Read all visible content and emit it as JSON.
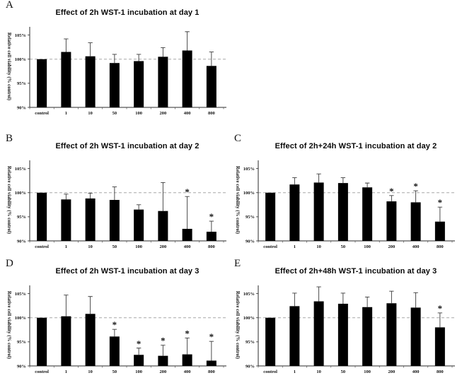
{
  "figure": {
    "background": "#ffffff",
    "bar_color": "#000000",
    "error_bar_color": "#3a3a3a",
    "axis_color": "#2b2b2b",
    "reference_line_color": "#9a9a9a",
    "significance_marker": "*",
    "y_axis_label": "Relative cell viability (% control)",
    "y_tick_labels": [
      "105%",
      "100%",
      "95%",
      "90%"
    ],
    "x_categories": [
      "control",
      "1",
      "10",
      "50",
      "100",
      "200",
      "400",
      "800"
    ]
  },
  "chart_data": [
    {
      "type": "bar",
      "panel": "A",
      "title": "Effect of 2h WST-1 incubation at day 1",
      "xlabel": "",
      "ylabel": "Relative cell viability (% control)",
      "categories": [
        "control",
        "1",
        "10",
        "50",
        "100",
        "200",
        "400",
        "800"
      ],
      "values": [
        100,
        101.5,
        100.6,
        99.2,
        99.6,
        100.5,
        101.8,
        98.6
      ],
      "errors_upper": [
        0,
        2.7,
        2.8,
        1.8,
        1.4,
        1.9,
        3.9,
        2.9
      ],
      "significant": [
        false,
        false,
        false,
        false,
        false,
        false,
        false,
        false
      ],
      "ylim": [
        90,
        107
      ],
      "yticks": [
        90,
        95,
        100,
        105
      ],
      "reference_line": 100,
      "grid": false,
      "legend": "none"
    },
    {
      "type": "bar",
      "panel": "B",
      "title": "Effect of 2h WST-1 incubation at day 2",
      "xlabel": "",
      "ylabel": "Relative cell viability (% control)",
      "categories": [
        "control",
        "1",
        "10",
        "50",
        "100",
        "200",
        "400",
        "800"
      ],
      "values": [
        100,
        98.6,
        98.8,
        98.5,
        96.5,
        96.2,
        92.5,
        91.9
      ],
      "errors_upper": [
        0,
        1.1,
        1.1,
        2.7,
        1.0,
        5.9,
        6.7,
        2.2
      ],
      "significant": [
        false,
        false,
        false,
        false,
        false,
        false,
        true,
        true
      ],
      "ylim": [
        90,
        107
      ],
      "yticks": [
        90,
        95,
        100,
        105
      ],
      "reference_line": 100,
      "grid": false,
      "legend": "none"
    },
    {
      "type": "bar",
      "panel": "C",
      "title": "Effect of 2h+24h WST-1 incubation at day 2",
      "xlabel": "",
      "ylabel": "Relative cell viability (% control)",
      "categories": [
        "control",
        "1",
        "10",
        "50",
        "100",
        "200",
        "400",
        "800"
      ],
      "values": [
        100,
        101.7,
        102.1,
        102.0,
        101.1,
        98.2,
        98.0,
        94.0
      ],
      "errors_upper": [
        0,
        1.4,
        1.8,
        1.1,
        0.9,
        1.2,
        2.4,
        3.0
      ],
      "significant": [
        false,
        false,
        false,
        false,
        false,
        true,
        true,
        true
      ],
      "ylim": [
        90,
        107
      ],
      "yticks": [
        90,
        95,
        100,
        105
      ],
      "reference_line": 100,
      "grid": false,
      "legend": "none"
    },
    {
      "type": "bar",
      "panel": "D",
      "title": "Effect of 2h WST-1 incubation at day 3",
      "xlabel": "",
      "ylabel": "Relative cell viability (% control)",
      "categories": [
        "control",
        "1",
        "10",
        "50",
        "100",
        "200",
        "400",
        "800"
      ],
      "values": [
        100,
        100.3,
        100.8,
        96.1,
        92.3,
        92.1,
        92.4,
        91.1
      ],
      "errors_upper": [
        0,
        4.4,
        3.6,
        1.5,
        1.4,
        2.2,
        3.4,
        4.0
      ],
      "significant": [
        false,
        false,
        false,
        true,
        true,
        true,
        true,
        true
      ],
      "ylim": [
        90,
        107
      ],
      "yticks": [
        90,
        95,
        100,
        105
      ],
      "reference_line": 100,
      "grid": false,
      "legend": "none"
    },
    {
      "type": "bar",
      "panel": "E",
      "title": "Effect of 2h+48h WST-1 incubation at day 3",
      "xlabel": "",
      "ylabel": "Relative cell viability (% control)",
      "categories": [
        "control",
        "1",
        "10",
        "50",
        "100",
        "200",
        "400",
        "800"
      ],
      "values": [
        100,
        102.4,
        103.4,
        102.9,
        102.2,
        103.0,
        102.1,
        98.0
      ],
      "errors_upper": [
        0,
        2.7,
        3.0,
        2.2,
        2.1,
        2.5,
        3.1,
        3.0
      ],
      "significant": [
        false,
        false,
        false,
        false,
        false,
        false,
        false,
        true
      ],
      "ylim": [
        90,
        107
      ],
      "yticks": [
        90,
        95,
        100,
        105
      ],
      "reference_line": 100,
      "grid": false,
      "legend": "none"
    }
  ]
}
